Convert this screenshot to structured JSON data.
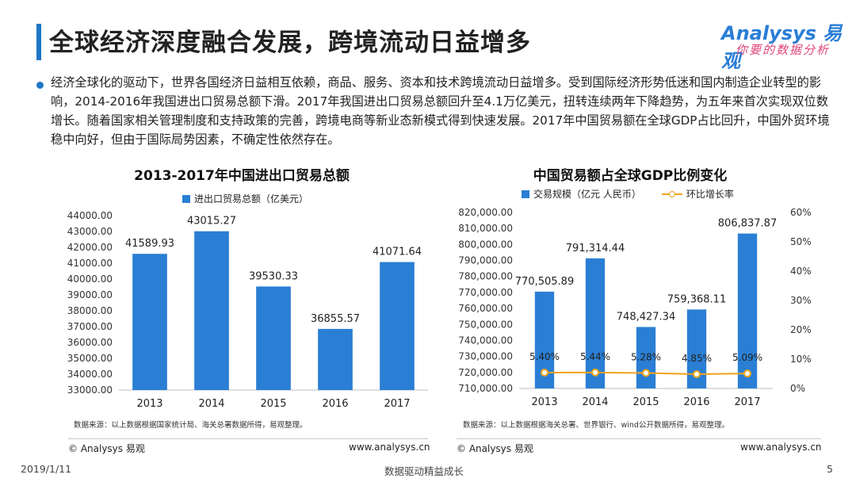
{
  "header": {
    "title": "全球经济深度融合发展，跨境流动日益增多",
    "logo_text": "Analysys 易观",
    "logo_slogan": "你要的数据分析"
  },
  "summary": "经济全球化的驱动下，世界各国经济日益相互依赖，商品、服务、资本和技术跨境流动日益增多。受到国际经济形势低迷和国内制造企业转型的影响，2014-2016年我国进出口贸易总额下滑。2017年我国进出口贸易总额回升至4.1万亿美元，扭转连续两年下降趋势，为五年来首次实现双位数增长。随着国家相关管理制度和支持政策的完善，跨境电商等新业态新模式得到快速发展。2017年中国贸易额在全球GDP占比回升，中国外贸环境稳中向好，但由于国际局势因素，不确定性依然存在。",
  "chart_data": [
    {
      "type": "bar",
      "title": "2013-2017年中国进出口贸易总额",
      "categories": [
        "2013",
        "2014",
        "2015",
        "2016",
        "2017"
      ],
      "series": [
        {
          "name": "进出口贸易总额（亿美元）",
          "values": [
            41589.93,
            43015.27,
            39530.33,
            36855.57,
            41071.64
          ]
        }
      ],
      "data_labels": [
        "41589.93",
        "43015.27",
        "39530.33",
        "36855.57",
        "41071.64"
      ],
      "ylim": [
        33000,
        44000
      ],
      "yticks": [
        "33000.00",
        "34000.00",
        "35000.00",
        "36000.00",
        "37000.00",
        "38000.00",
        "39000.00",
        "40000.00",
        "41000.00",
        "42000.00",
        "43000.00",
        "44000.00"
      ],
      "bar_color": "#2a7fd4",
      "legend_position": "top-left",
      "source": "数据来源：以上数据根据国家统计局、海关总署数据所得，易观整理。"
    },
    {
      "type": "bar",
      "title": "中国贸易额占全球GDP比例变化",
      "categories": [
        "2013",
        "2014",
        "2015",
        "2016",
        "2017"
      ],
      "series": [
        {
          "name": "交易规模（亿元 人民币）",
          "values": [
            770505.89,
            791314.44,
            748427.34,
            759368.11,
            806837.87
          ]
        },
        {
          "name": "环比增长率",
          "type": "line",
          "values": [
            5.4,
            5.44,
            5.28,
            4.85,
            5.09
          ]
        }
      ],
      "data_labels": [
        "770,505.89",
        "791,314.44",
        "748,427.34",
        "759,368.11",
        "806,837.87"
      ],
      "line_labels": [
        "5.40%",
        "5.44%",
        "5.28%",
        "4.85%",
        "5.09%"
      ],
      "ylim": [
        710000,
        820000
      ],
      "yticks": [
        "710,000.00",
        "720,000.00",
        "730,000.00",
        "740,000.00",
        "750,000.00",
        "760,000.00",
        "770,000.00",
        "780,000.00",
        "790,000.00",
        "800,000.00",
        "810,000.00",
        "820,000.00"
      ],
      "y2lim": [
        0,
        60
      ],
      "y2ticks": [
        "0%",
        "10%",
        "20%",
        "30%",
        "40%",
        "50%",
        "60%"
      ],
      "bar_color": "#2a7fd4",
      "line_color": "#f0a31a",
      "legend_position": "top",
      "source": "数据来源：以上数据根据海关总署、世界银行、wind公开数据所得，易观整理。"
    }
  ],
  "footer": {
    "copyright_left": "© Analysys 易观",
    "url_left": "www.analysys.cn",
    "copyright_right": "© Analysys 易观",
    "url_right": "www.analysys.cn",
    "date": "2019/1/11",
    "tagline": "数据驱动精益成长",
    "page_number": "5"
  }
}
